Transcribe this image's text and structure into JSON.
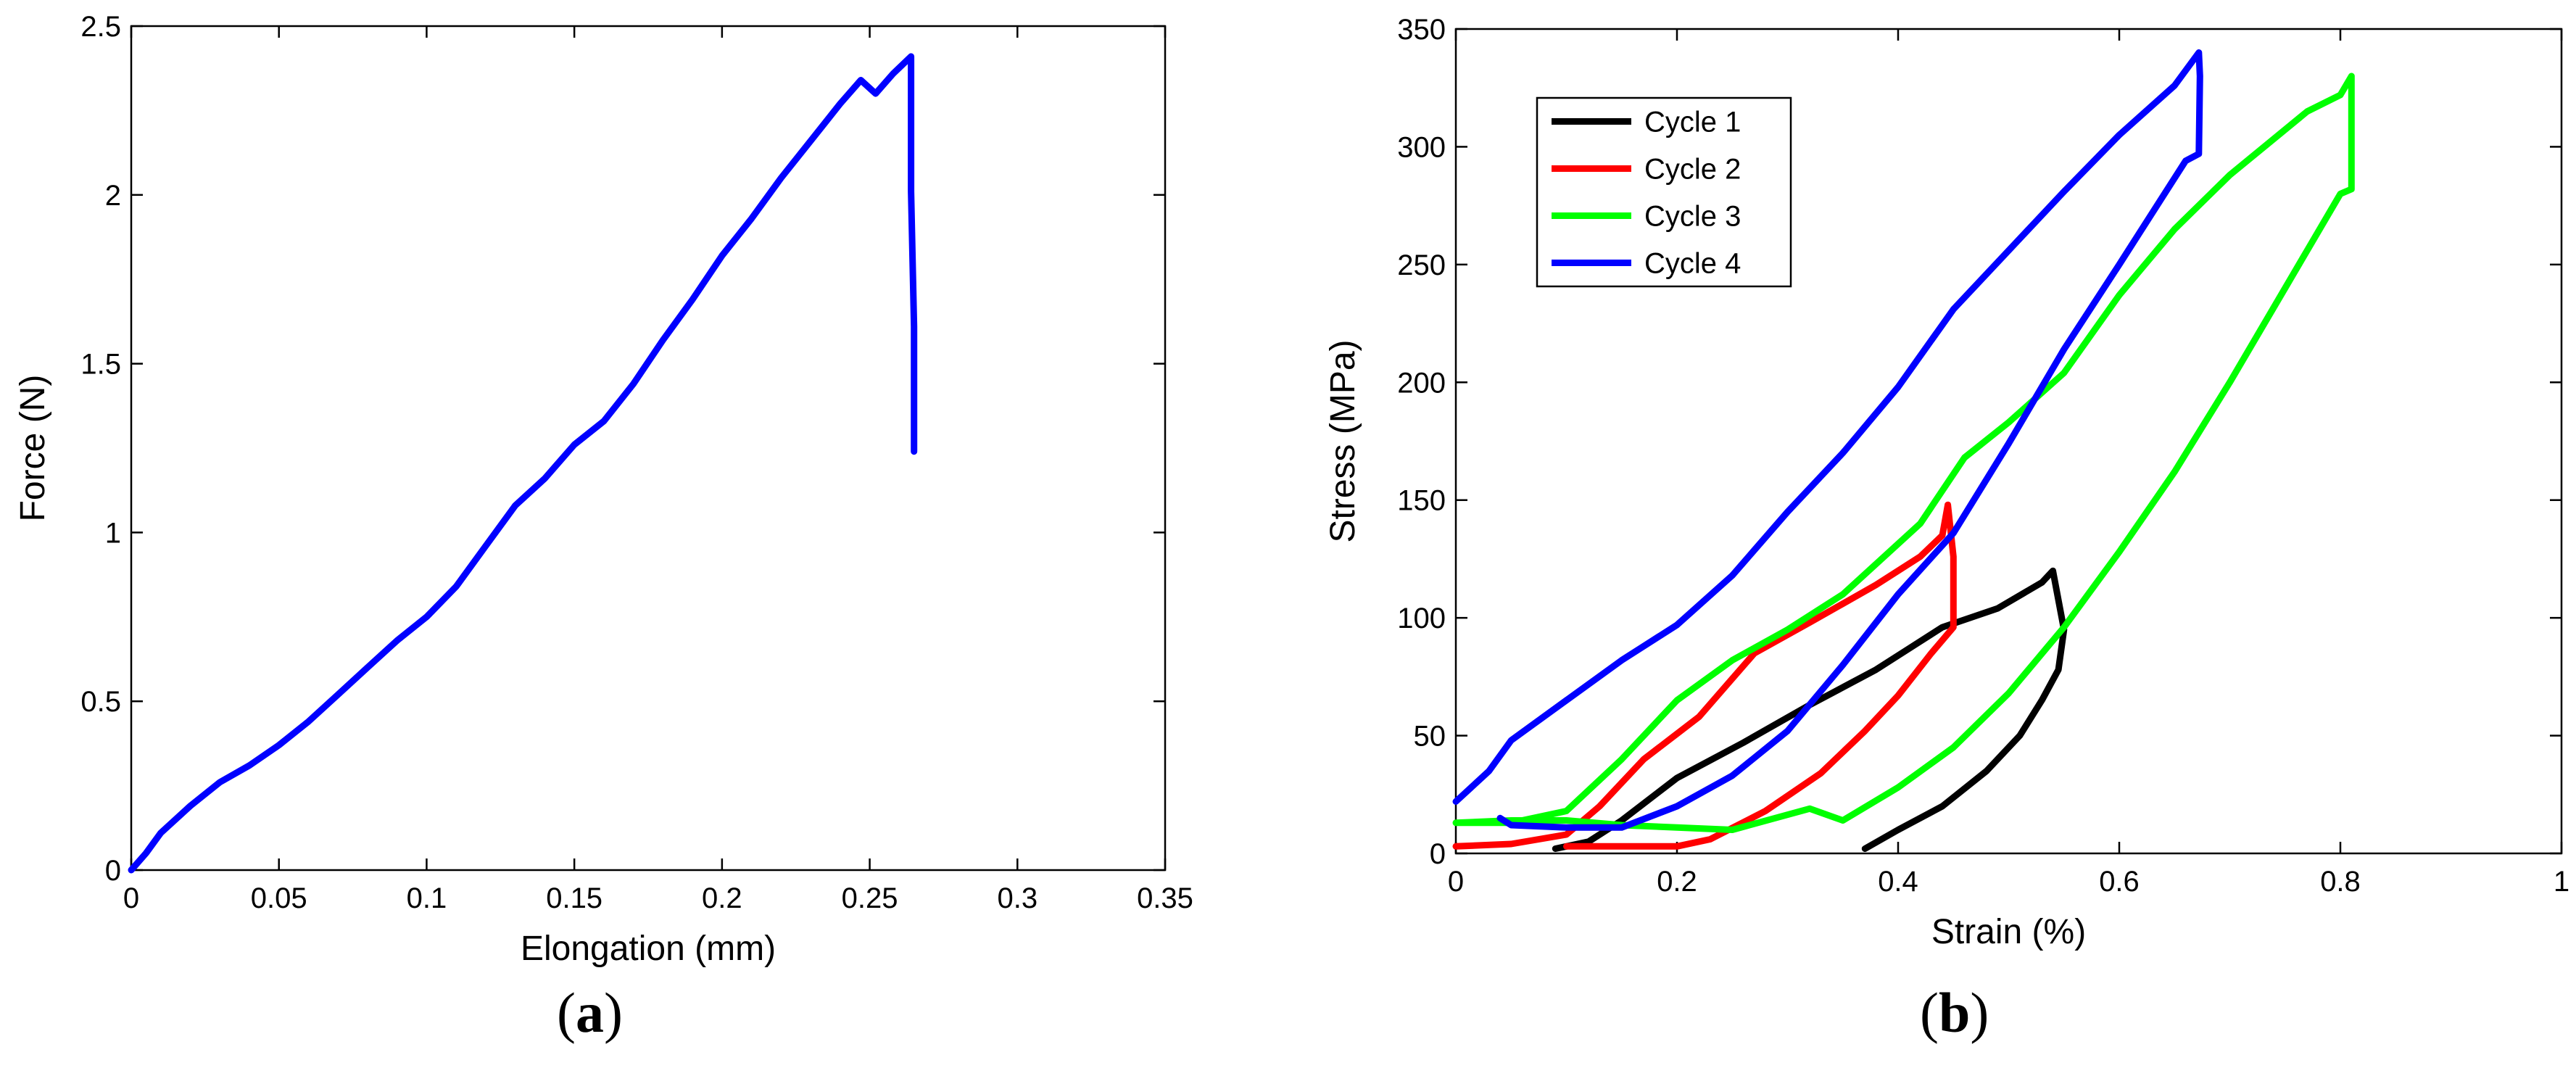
{
  "panel_labels": {
    "a": {
      "open": "(",
      "letter": "a",
      "close": ")"
    },
    "b": {
      "open": "(",
      "letter": "b",
      "close": ")"
    }
  },
  "chart_data": [
    {
      "id": "a",
      "type": "line",
      "title": "",
      "xlabel": "Elongation (mm)",
      "ylabel": "Force (N)",
      "xlim": [
        0,
        0.35
      ],
      "ylim": [
        0,
        2.5
      ],
      "xticks": [
        0,
        0.05,
        0.1,
        0.15,
        0.2,
        0.25,
        0.3,
        0.35
      ],
      "xtick_labels": [
        "0",
        "0.05",
        "0.1",
        "0.15",
        "0.2",
        "0.25",
        "0.3",
        "0.35"
      ],
      "yticks": [
        0,
        0.5,
        1,
        1.5,
        2,
        2.5
      ],
      "ytick_labels": [
        "0",
        "0.5",
        "1",
        "1.5",
        "2",
        "2.5"
      ],
      "grid": false,
      "series": [
        {
          "name": "Force",
          "color": "#0000ff",
          "x": [
            0,
            0.005,
            0.01,
            0.02,
            0.03,
            0.04,
            0.05,
            0.06,
            0.07,
            0.08,
            0.09,
            0.1,
            0.11,
            0.12,
            0.13,
            0.14,
            0.15,
            0.16,
            0.17,
            0.18,
            0.19,
            0.2,
            0.21,
            0.22,
            0.23,
            0.24,
            0.247,
            0.252,
            0.258,
            0.264,
            0.264,
            0.265,
            0.265
          ],
          "y": [
            0,
            0.05,
            0.11,
            0.19,
            0.26,
            0.31,
            0.37,
            0.44,
            0.52,
            0.6,
            0.68,
            0.75,
            0.84,
            0.96,
            1.08,
            1.16,
            1.26,
            1.33,
            1.44,
            1.57,
            1.69,
            1.82,
            1.93,
            2.05,
            2.16,
            2.27,
            2.34,
            2.3,
            2.36,
            2.41,
            2.01,
            1.61,
            1.24
          ]
        }
      ]
    },
    {
      "id": "b",
      "type": "line",
      "title": "",
      "xlabel": "Strain (%)",
      "ylabel": "Stress (MPa)",
      "xlim": [
        0,
        1
      ],
      "ylim": [
        0,
        350
      ],
      "xticks": [
        0,
        0.2,
        0.4,
        0.6,
        0.8,
        1
      ],
      "xtick_labels": [
        "0",
        "0.2",
        "0.4",
        "0.6",
        "0.8",
        "1"
      ],
      "yticks": [
        0,
        50,
        100,
        150,
        200,
        250,
        300,
        350
      ],
      "ytick_labels": [
        "0",
        "50",
        "100",
        "150",
        "200",
        "250",
        "300",
        "350"
      ],
      "grid": false,
      "legend_position": "top-left",
      "series": [
        {
          "name": "Cycle 1",
          "color": "#000000",
          "x": [
            0.09,
            0.12,
            0.15,
            0.2,
            0.26,
            0.32,
            0.38,
            0.44,
            0.49,
            0.53,
            0.54,
            0.55,
            0.545,
            0.53,
            0.51,
            0.48,
            0.44,
            0.4,
            0.37
          ],
          "y": [
            2,
            5,
            14,
            32,
            47,
            63,
            78,
            96,
            104,
            115,
            120,
            95,
            78,
            65,
            50,
            35,
            20,
            10,
            2
          ]
        },
        {
          "name": "Cycle 2",
          "color": "#ff0000",
          "x": [
            0,
            0.05,
            0.1,
            0.13,
            0.17,
            0.22,
            0.27,
            0.32,
            0.38,
            0.42,
            0.44,
            0.445,
            0.45,
            0.45,
            0.43,
            0.4,
            0.37,
            0.33,
            0.28,
            0.23,
            0.2,
            0.1
          ],
          "y": [
            3,
            4,
            8,
            20,
            40,
            58,
            85,
            98,
            114,
            126,
            135,
            148,
            126,
            96,
            85,
            67,
            52,
            34,
            18,
            6,
            3,
            3
          ]
        },
        {
          "name": "Cycle 3",
          "color": "#00ff00",
          "x": [
            0,
            0.05,
            0.1,
            0.15,
            0.2,
            0.25,
            0.3,
            0.35,
            0.42,
            0.46,
            0.5,
            0.55,
            0.6,
            0.65,
            0.7,
            0.77,
            0.8,
            0.81,
            0.81,
            0.8,
            0.75,
            0.7,
            0.65,
            0.6,
            0.55,
            0.5,
            0.45,
            0.4,
            0.35,
            0.32,
            0.25,
            0.2,
            0.15,
            0.1,
            0.05,
            0
          ],
          "y": [
            13,
            13,
            18,
            40,
            65,
            82,
            95,
            110,
            140,
            168,
            183,
            204,
            237,
            265,
            288,
            315,
            322,
            330,
            282,
            280,
            240,
            200,
            162,
            128,
            96,
            68,
            45,
            28,
            14,
            19,
            10,
            11,
            12,
            14,
            14,
            13
          ]
        },
        {
          "name": "Cycle 4",
          "color": "#0000ff",
          "x": [
            0,
            0.03,
            0.05,
            0.1,
            0.15,
            0.2,
            0.25,
            0.3,
            0.35,
            0.4,
            0.45,
            0.5,
            0.55,
            0.6,
            0.65,
            0.672,
            0.673,
            0.672,
            0.66,
            0.6,
            0.55,
            0.5,
            0.45,
            0.4,
            0.35,
            0.3,
            0.25,
            0.2,
            0.15,
            0.1,
            0.05,
            0.04
          ],
          "y": [
            22,
            35,
            48,
            65,
            82,
            97,
            118,
            145,
            170,
            198,
            231,
            256,
            281,
            305,
            326,
            340,
            330,
            297,
            294,
            250,
            214,
            174,
            136,
            110,
            80,
            52,
            33,
            20,
            11,
            11,
            12,
            15
          ]
        }
      ]
    }
  ]
}
